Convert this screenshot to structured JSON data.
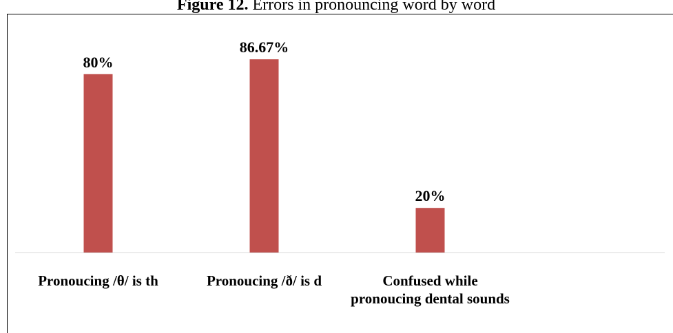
{
  "chart_data": {
    "type": "bar",
    "title_label": "Figure 12.",
    "title": "Errors in pronouncing word by word",
    "categories": [
      "Pronoucing /θ/ is th",
      "Pronoucing /ð/ is d",
      "Confused while pronoucing dental sounds"
    ],
    "values": [
      80,
      86.67,
      20
    ],
    "value_labels": [
      "80%",
      "86.67%",
      "20%"
    ],
    "color": "#c0504d"
  }
}
